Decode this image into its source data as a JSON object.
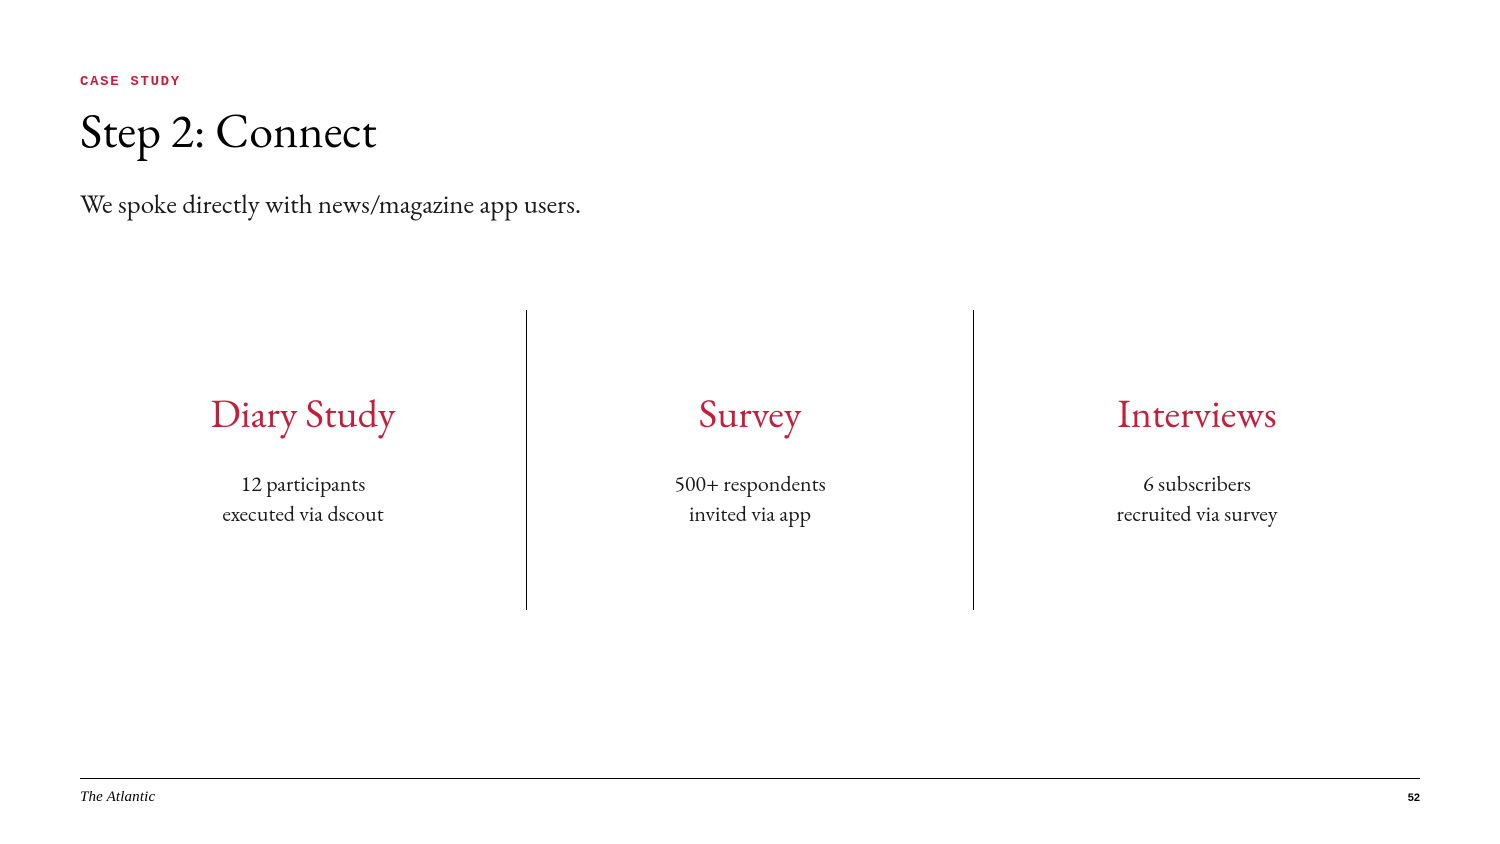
{
  "header": {
    "eyebrow": "CASE STUDY",
    "eyebrow_color": "#c41e3a",
    "title": "Step 2: Connect",
    "subtitle": "We spoke directly with news/magazine app users."
  },
  "columns": {
    "accent_color": "#c41e3a",
    "divider_color": "#000000",
    "items": [
      {
        "title": "Diary Study",
        "line1": "12 participants",
        "line2": "executed via dscout"
      },
      {
        "title": "Survey",
        "line1": "500+ respondents",
        "line2": "invited via app"
      },
      {
        "title": "Interviews",
        "line1": "6 subscribers",
        "line2": "recruited via survey"
      }
    ]
  },
  "footer": {
    "brand": "The Atlantic",
    "page_number": "52"
  },
  "style": {
    "background_color": "#ffffff",
    "text_color": "#000000",
    "title_fontsize_pt": 36,
    "subtitle_fontsize_pt": 20,
    "column_title_fontsize_pt": 30,
    "column_body_fontsize_pt": 16,
    "eyebrow_fontsize_pt": 10,
    "brand_fontsize_pt": 11,
    "pagenum_fontsize_pt": 8
  }
}
